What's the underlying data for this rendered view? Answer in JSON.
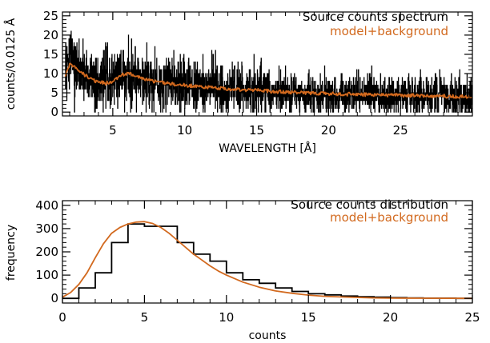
{
  "colors": {
    "data": "#000000",
    "model": "#d2691e",
    "axis": "#000000"
  },
  "chart_data": [
    {
      "type": "line",
      "xlabel": "WAVELENGTH [Å]",
      "ylabel": "counts/0.0125 Å",
      "xlim": [
        1.5,
        30
      ],
      "ylim": [
        -1,
        26
      ],
      "xticks": [
        5,
        10,
        15,
        20,
        25
      ],
      "xtick_labels": [
        "5",
        "10",
        "15",
        "20",
        "25"
      ],
      "yticks": [
        0,
        5,
        10,
        15,
        20,
        25
      ],
      "ytick_labels": [
        "0",
        "5",
        "10",
        "15",
        "20",
        "25"
      ],
      "legend_position": "top-right",
      "series": [
        {
          "name": "Source counts spectrum",
          "style": "histogram",
          "noise_model": "poisson",
          "x": [
            1.7,
            2.0,
            2.5,
            3.0,
            3.5,
            4.0,
            4.5,
            5.0,
            5.5,
            6.0,
            6.5,
            7.0,
            7.5,
            8.0,
            9.0,
            10.0,
            11.0,
            12.0,
            13.0,
            14.0,
            15.0,
            16.0,
            17.0,
            18.0,
            19.0,
            20.0,
            22.0,
            24.0,
            26.0,
            28.0,
            30.0
          ],
          "y": [
            9.5,
            12.5,
            11.5,
            9.8,
            8.5,
            7.8,
            7.5,
            8.0,
            9.5,
            10.0,
            9.6,
            8.8,
            8.4,
            7.9,
            7.3,
            7.0,
            6.6,
            6.3,
            6.0,
            5.8,
            5.7,
            5.4,
            5.2,
            5.0,
            4.9,
            4.8,
            4.6,
            4.4,
            4.3,
            4.1,
            4.0
          ]
        },
        {
          "name": "model+background",
          "style": "line",
          "x": [
            1.7,
            2.0,
            2.5,
            3.0,
            3.5,
            4.0,
            4.5,
            5.0,
            5.5,
            6.0,
            6.5,
            7.0,
            7.5,
            8.0,
            9.0,
            10.0,
            11.0,
            12.0,
            13.0,
            14.0,
            15.0,
            16.0,
            17.0,
            18.0,
            19.0,
            20.0,
            22.0,
            24.0,
            26.0,
            28.0,
            30.0
          ],
          "y": [
            9.5,
            12.5,
            11.5,
            9.8,
            8.5,
            7.8,
            7.5,
            8.0,
            9.5,
            10.0,
            9.6,
            8.8,
            8.4,
            7.9,
            7.3,
            7.0,
            6.6,
            6.3,
            6.0,
            5.8,
            5.7,
            5.4,
            5.2,
            5.0,
            4.9,
            4.8,
            4.6,
            4.4,
            4.3,
            4.1,
            4.0
          ]
        }
      ]
    },
    {
      "type": "line",
      "xlabel": "counts",
      "ylabel": "frequency",
      "xlim": [
        0,
        25
      ],
      "ylim": [
        -20,
        420
      ],
      "xticks": [
        0,
        5,
        10,
        15,
        20,
        25
      ],
      "xtick_labels": [
        "0",
        "5",
        "10",
        "15",
        "20",
        "25"
      ],
      "yticks": [
        0,
        100,
        200,
        300,
        400
      ],
      "ytick_labels": [
        "0",
        "100",
        "200",
        "300",
        "400"
      ],
      "legend_position": "top-right",
      "series": [
        {
          "name": "Source counts distribution",
          "style": "histogram",
          "bin_edges": [
            0,
            1,
            2,
            3,
            4,
            5,
            6,
            7,
            8,
            9,
            10,
            11,
            12,
            13,
            14,
            15,
            16,
            17,
            18,
            19,
            20,
            21,
            22,
            23,
            24,
            25
          ],
          "values": [
            0,
            45,
            110,
            240,
            320,
            310,
            310,
            240,
            190,
            160,
            110,
            80,
            65,
            45,
            30,
            20,
            15,
            10,
            7,
            5,
            3,
            2,
            1,
            1,
            0
          ]
        },
        {
          "name": "model+background",
          "style": "line",
          "x": [
            0,
            0.5,
            1,
            1.5,
            2,
            2.5,
            3,
            3.5,
            4,
            4.5,
            5,
            5.5,
            6,
            6.5,
            7,
            7.5,
            8,
            8.5,
            9,
            9.5,
            10,
            11,
            12,
            13,
            14,
            15,
            16,
            17,
            18,
            19,
            20,
            22,
            25
          ],
          "y": [
            5,
            25,
            60,
            110,
            175,
            235,
            280,
            305,
            320,
            328,
            330,
            322,
            305,
            280,
            250,
            220,
            190,
            165,
            140,
            118,
            100,
            70,
            48,
            32,
            22,
            14,
            9,
            6,
            4,
            2,
            1,
            0.5,
            0
          ]
        }
      ]
    }
  ]
}
